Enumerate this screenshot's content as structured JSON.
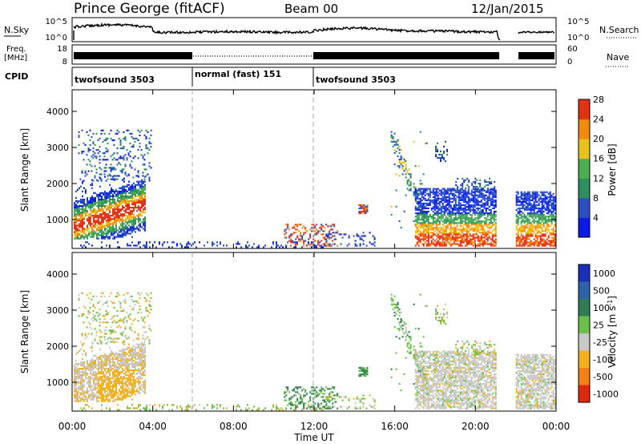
{
  "header": {
    "station": "Prince George (fitACF)",
    "beam": "Beam 00",
    "date": "12/Jan/2015"
  },
  "top_panels": {
    "nsky_label": "N.Sky",
    "nsky_ticks": [
      "10^5",
      "10^0"
    ],
    "nsearch_label": "N.Search",
    "nsearch_ticks": [
      "10^5",
      "10^0"
    ],
    "freq_label_1": "Freq.",
    "freq_label_2": "[MHz]",
    "freq_ticks": [
      "18",
      "8"
    ],
    "nave_label": "Nave",
    "nave_ticks": [
      "60",
      "0"
    ],
    "cpid_label": "CPID",
    "cpid_segments": [
      {
        "label": "twofsound 3503",
        "start_h": 0,
        "end_h": 6
      },
      {
        "label": "normal (fast) 151",
        "start_h": 6,
        "end_h": 12
      },
      {
        "label": "twofsound 3503",
        "start_h": 12,
        "end_h": 24
      }
    ]
  },
  "chart_data": [
    {
      "type": "heatmap",
      "name": "power",
      "ylabel": "Slant Range [km]",
      "ylim": [
        200,
        4600
      ],
      "yticks": [
        "1000",
        "2000",
        "3000",
        "4000"
      ],
      "ytick_values": [
        1000,
        2000,
        3000,
        4000
      ],
      "xlim_h": [
        0,
        24
      ],
      "colorbar_label": "Power [dB]",
      "colorbar_ticks": [
        "4",
        "8",
        "12",
        "16",
        "20",
        "24",
        "28"
      ],
      "colorbar_colors": [
        "#0b1be6",
        "#2a4fbf",
        "#2f8f5f",
        "#4caf4f",
        "#e8c21a",
        "#f28a10",
        "#e23214"
      ]
    },
    {
      "type": "heatmap",
      "name": "velocity",
      "ylabel": "Slant Range [km]",
      "ylim": [
        200,
        4600
      ],
      "yticks": [
        "1000",
        "2000",
        "3000",
        "4000"
      ],
      "ytick_values": [
        1000,
        2000,
        3000,
        4000
      ],
      "xlim_h": [
        0,
        24
      ],
      "xlabel": "Time UT",
      "xticks": [
        "00:00",
        "04:00",
        "08:00",
        "12:00",
        "16:00",
        "20:00",
        "00:00"
      ],
      "colorbar_label": "Velocity [m s",
      "colorbar_unit_sup": "-1",
      "colorbar_unit_close": "]",
      "colorbar_ticks": [
        "1000",
        "500",
        "100",
        "25",
        "-25",
        "-100",
        "-500",
        "-1000"
      ],
      "colorbar_colors": [
        "#1b2fb8",
        "#2d62a8",
        "#2e7d54",
        "#6cc04a",
        "#c8c8c8",
        "#f3b11c",
        "#f47f15",
        "#e02a10"
      ]
    }
  ]
}
